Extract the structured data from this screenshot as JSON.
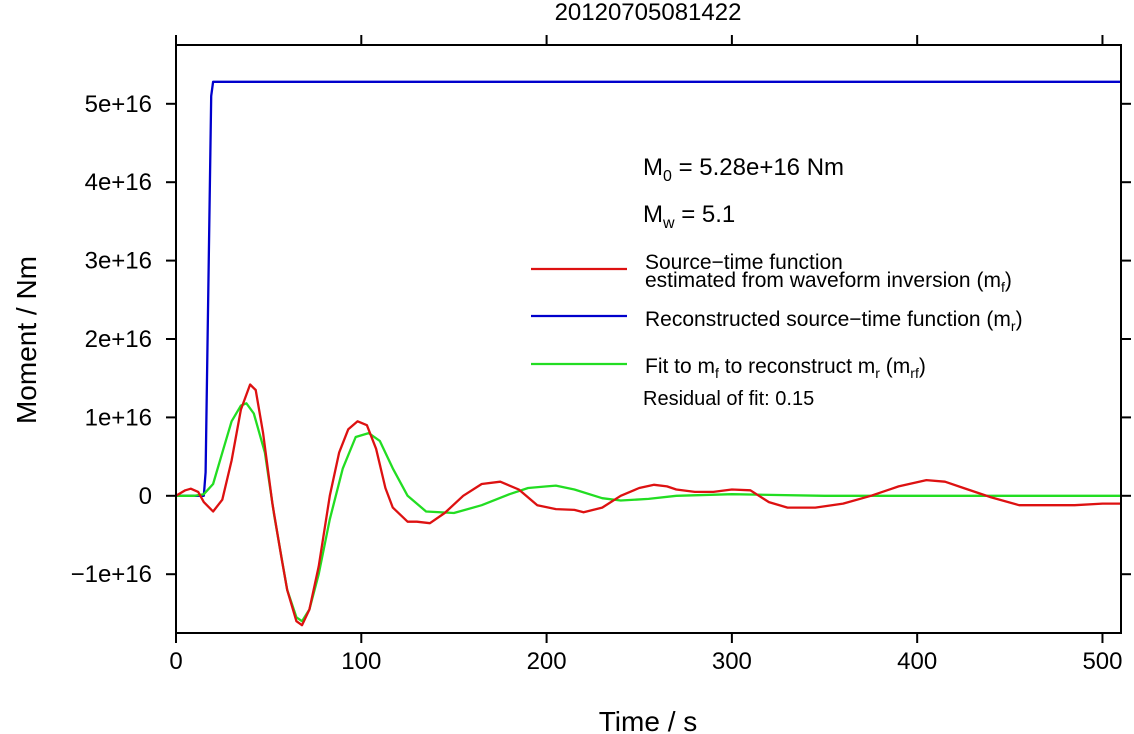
{
  "chart_data": {
    "type": "line",
    "title": "20120705081422",
    "xlabel": "Time / s",
    "ylabel": "Moment / Nm",
    "xlim": [
      0,
      510
    ],
    "ylim": [
      -1.75e+16,
      5.75e+16
    ],
    "xticks": [
      0,
      100,
      200,
      300,
      400,
      500
    ],
    "xtick_labels": [
      "0",
      "100",
      "200",
      "300",
      "400",
      "500"
    ],
    "yticks": [
      -1e+16,
      0,
      1e+16,
      2e+16,
      3e+16,
      4e+16,
      5e+16
    ],
    "ytick_labels": [
      "−1e+16",
      "0",
      "1e+16",
      "2e+16",
      "3e+16",
      "4e+16",
      "5e+16"
    ],
    "grid": false,
    "legend_position": "right, upper-middle",
    "annotations": {
      "m0_label": "M",
      "m0_sub": "0",
      "m0_text": " = 5.28e+16 Nm",
      "mw_label": "M",
      "mw_sub": "w",
      "mw_text": " = 5.1",
      "residual": "Residual of fit: 0.15"
    },
    "legend": [
      {
        "color": "#dd1111",
        "lines": [
          [
            {
              "t": "Source−time function"
            }
          ],
          [
            {
              "t": "estimated from waveform inversion (m"
            },
            {
              "t": "f",
              "sub": true
            },
            {
              "t": ")"
            }
          ]
        ]
      },
      {
        "color": "#0000cc",
        "lines": [
          [
            {
              "t": "Reconstructed source−time function (m"
            },
            {
              "t": "r",
              "sub": true
            },
            {
              "t": ")"
            }
          ]
        ]
      },
      {
        "color": "#22dd22",
        "lines": [
          [
            {
              "t": "Fit to m"
            },
            {
              "t": "f",
              "sub": true
            },
            {
              "t": " to reconstruct m"
            },
            {
              "t": "r",
              "sub": true
            },
            {
              "t": " (m"
            },
            {
              "t": "rf",
              "sub": true
            },
            {
              "t": ")"
            }
          ]
        ]
      }
    ],
    "series": [
      {
        "color": "#dd1111",
        "x": [
          0,
          5,
          8,
          12,
          15,
          20,
          25,
          30,
          35,
          40,
          43,
          47,
          52,
          57,
          60,
          65,
          68,
          72,
          77,
          83,
          88,
          93,
          98,
          103,
          108,
          113,
          117,
          125,
          130,
          137,
          145,
          155,
          165,
          175,
          185,
          195,
          205,
          215,
          220,
          230,
          240,
          250,
          258,
          265,
          270,
          280,
          290,
          300,
          310,
          320,
          330,
          345,
          360,
          375,
          390,
          405,
          415,
          425,
          440,
          455,
          470,
          485,
          500,
          510
        ],
        "y": [
          0,
          700000000000000.0,
          900000000000000.0,
          500000000000000.0,
          -800000000000000.0,
          -2000000000000000.0,
          -500000000000000.0,
          4500000000000000.0,
          1.1e+16,
          1.42e+16,
          1.35e+16,
          8000000000000000.0,
          -1000000000000000.0,
          -8000000000000000.0,
          -1.2e+16,
          -1.6e+16,
          -1.65e+16,
          -1.45e+16,
          -9000000000000000.0,
          0,
          5500000000000000.0,
          8500000000000000.0,
          9500000000000000.0,
          9000000000000000.0,
          6000000000000000.0,
          1000000000000000.0,
          -1500000000000000.0,
          -3300000000000000.0,
          -3300000000000000.0,
          -3500000000000000.0,
          -2200000000000000.0,
          0,
          1500000000000000.0,
          1800000000000000.0,
          800000000000000.0,
          -1200000000000000.0,
          -1700000000000000.0,
          -1800000000000000.0,
          -2100000000000000.0,
          -1500000000000000.0,
          0,
          1000000000000000.0,
          1400000000000000.0,
          1200000000000000.0,
          800000000000000.0,
          500000000000000.0,
          500000000000000.0,
          800000000000000.0,
          700000000000000.0,
          -800000000000000.0,
          -1500000000000000.0,
          -1500000000000000.0,
          -1000000000000000.0,
          0,
          1200000000000000.0,
          2000000000000000.0,
          1800000000000000.0,
          1000000000000000.0,
          -200000000000000.0,
          -1200000000000000.0,
          -1200000000000000.0,
          -1200000000000000.0,
          -1000000000000000.0,
          -1000000000000000.0
        ]
      },
      {
        "color": "#0000cc",
        "x": [
          0,
          15,
          16,
          19,
          20,
          35,
          100,
          200,
          300,
          400,
          510
        ],
        "y": [
          0,
          0,
          3000000000000000.0,
          5.1e+16,
          5.28e+16,
          5.28e+16,
          5.28e+16,
          5.28e+16,
          5.28e+16,
          5.28e+16,
          5.28e+16
        ]
      },
      {
        "color": "#22dd22",
        "x": [
          0,
          10,
          15,
          20,
          25,
          30,
          35,
          38,
          42,
          48,
          53,
          60,
          65,
          68,
          72,
          77,
          83,
          90,
          97,
          104,
          110,
          117,
          125,
          135,
          150,
          165,
          180,
          190,
          200,
          205,
          215,
          230,
          240,
          255,
          270,
          300,
          350,
          400,
          450,
          510
        ],
        "y": [
          0,
          0,
          200000000000000.0,
          1500000000000000.0,
          5500000000000000.0,
          9500000000000000.0,
          1.15e+16,
          1.18e+16,
          1.05e+16,
          5500000000000000.0,
          -2500000000000000.0,
          -1.2e+16,
          -1.55e+16,
          -1.6e+16,
          -1.45e+16,
          -1e+16,
          -3000000000000000.0,
          3500000000000000.0,
          7500000000000000.0,
          8000000000000000.0,
          7000000000000000.0,
          3500000000000000.0,
          0,
          -2000000000000000.0,
          -2200000000000000.0,
          -1200000000000000.0,
          200000000000000.0,
          1000000000000000.0,
          1200000000000000.0,
          1300000000000000.0,
          800000000000000.0,
          -300000000000000.0,
          -600000000000000.0,
          -400000000000000.0,
          0,
          200000000000000.0,
          0,
          0,
          0,
          0
        ]
      }
    ]
  }
}
